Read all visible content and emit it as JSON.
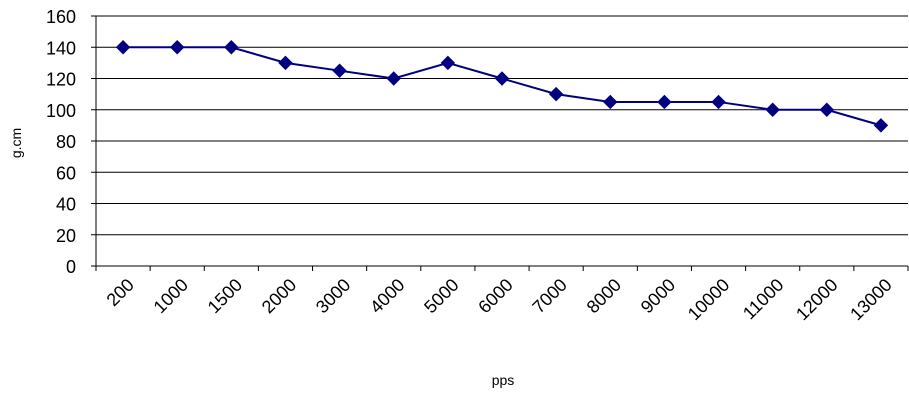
{
  "chart_data": {
    "type": "line",
    "title": "",
    "xlabel": "pps",
    "ylabel": "g.cm",
    "categories": [
      "200",
      "1000",
      "1500",
      "2000",
      "3000",
      "4000",
      "5000",
      "6000",
      "7000",
      "8000",
      "9000",
      "10000",
      "11000",
      "12000",
      "13000"
    ],
    "series": [
      {
        "values": [
          140,
          140,
          140,
          130,
          125,
          120,
          130,
          120,
          110,
          105,
          105,
          105,
          100,
          100,
          90
        ],
        "color": "#000080",
        "marker": "diamond"
      }
    ],
    "ylim": [
      0,
      160
    ],
    "yticks": [
      0,
      20,
      40,
      60,
      80,
      100,
      120,
      140,
      160
    ],
    "grid": "horizontal",
    "legend": "none"
  }
}
